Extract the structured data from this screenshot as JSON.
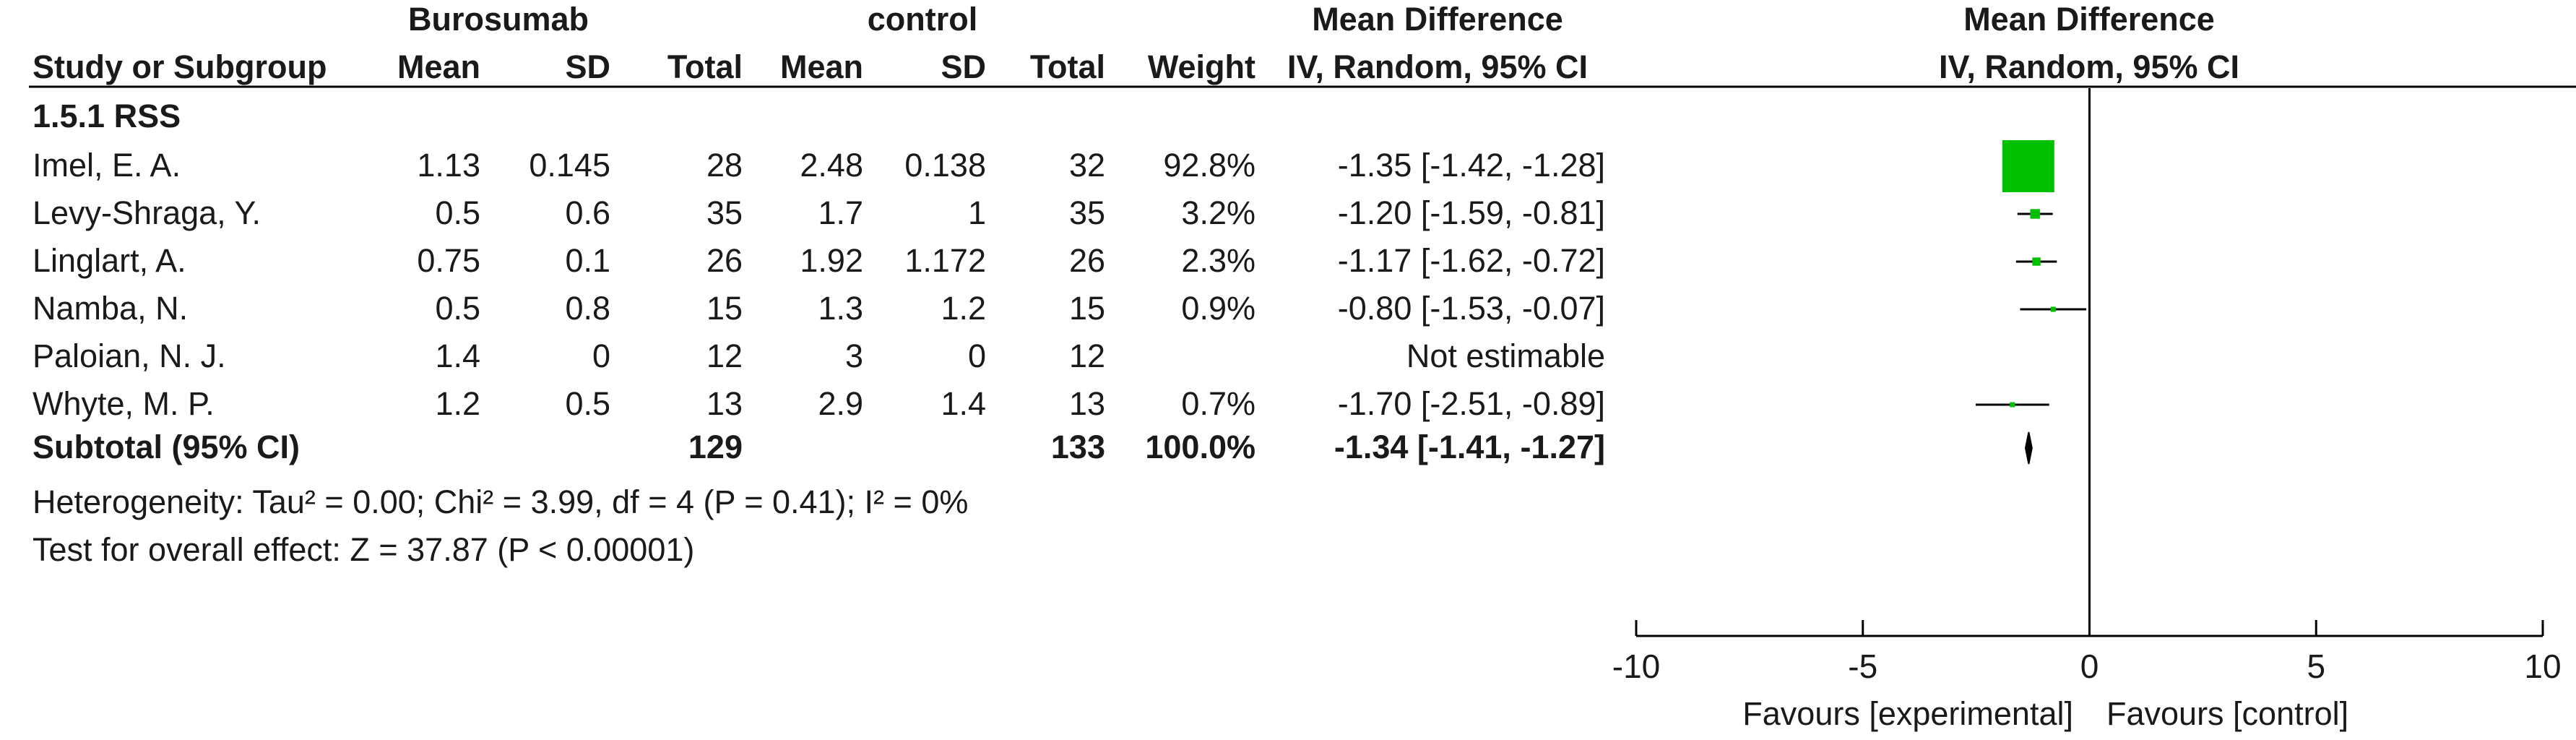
{
  "header": {
    "group_experimental": "Burosumab",
    "group_control": "control",
    "effect_measure": "Mean Difference",
    "effect_method": "IV, Random, 95% CI",
    "plot_measure": "Mean Difference",
    "plot_method": "IV, Random, 95% CI",
    "columns": {
      "study": "Study or Subgroup",
      "exp_mean": "Mean",
      "exp_sd": "SD",
      "exp_total": "Total",
      "ctl_mean": "Mean",
      "ctl_sd": "SD",
      "ctl_total": "Total",
      "weight": "Weight"
    }
  },
  "subgroup_label": "1.5.1 RSS",
  "studies": [
    {
      "name": "Imel, E. A.",
      "exp_mean": "1.13",
      "exp_sd": "0.145",
      "exp_total": "28",
      "ctl_mean": "2.48",
      "ctl_sd": "0.138",
      "ctl_total": "32",
      "weight": "92.8%",
      "ci_text": "-1.35 [-1.42, -1.28]"
    },
    {
      "name": "Levy-Shraga, Y.",
      "exp_mean": "0.5",
      "exp_sd": "0.6",
      "exp_total": "35",
      "ctl_mean": "1.7",
      "ctl_sd": "1",
      "ctl_total": "35",
      "weight": "3.2%",
      "ci_text": "-1.20 [-1.59, -0.81]"
    },
    {
      "name": "Linglart, A.",
      "exp_mean": "0.75",
      "exp_sd": "0.1",
      "exp_total": "26",
      "ctl_mean": "1.92",
      "ctl_sd": "1.172",
      "ctl_total": "26",
      "weight": "2.3%",
      "ci_text": "-1.17 [-1.62, -0.72]"
    },
    {
      "name": "Namba, N.",
      "exp_mean": "0.5",
      "exp_sd": "0.8",
      "exp_total": "15",
      "ctl_mean": "1.3",
      "ctl_sd": "1.2",
      "ctl_total": "15",
      "weight": "0.9%",
      "ci_text": "-0.80 [-1.53, -0.07]"
    },
    {
      "name": "Paloian, N. J.",
      "exp_mean": "1.4",
      "exp_sd": "0",
      "exp_total": "12",
      "ctl_mean": "3",
      "ctl_sd": "0",
      "ctl_total": "12",
      "weight": "",
      "ci_text": "Not estimable"
    },
    {
      "name": "Whyte, M. P.",
      "exp_mean": "1.2",
      "exp_sd": "0.5",
      "exp_total": "13",
      "ctl_mean": "2.9",
      "ctl_sd": "1.4",
      "ctl_total": "13",
      "weight": "0.7%",
      "ci_text": "-1.70 [-2.51, -0.89]"
    }
  ],
  "subtotal": {
    "label": "Subtotal (95% CI)",
    "exp_total": "129",
    "ctl_total": "133",
    "weight": "100.0%",
    "ci_text": "-1.34 [-1.41, -1.27]"
  },
  "heterogeneity": "Heterogeneity: Tau² = 0.00; Chi² = 3.99, df = 4 (P = 0.41); I² = 0%",
  "overall_effect": "Test for overall effect: Z = 37.87 (P < 0.00001)",
  "axis": {
    "ticks": [
      "-10",
      "-5",
      "0",
      "5",
      "10"
    ],
    "favours_left": "Favours [experimental]",
    "favours_right": "Favours [control]"
  },
  "colors": {
    "marker": "#00c000",
    "line": "#000000",
    "text": "#1a1a1a"
  },
  "chart_data": {
    "type": "forest",
    "xlim": [
      -10,
      10
    ],
    "ticks": [
      -10,
      -5,
      0,
      5,
      10
    ],
    "null_line": 0,
    "points": [
      {
        "study": "Imel, E. A.",
        "md": -1.35,
        "lower": -1.42,
        "upper": -1.28,
        "weight": 92.8
      },
      {
        "study": "Levy-Shraga, Y.",
        "md": -1.2,
        "lower": -1.59,
        "upper": -0.81,
        "weight": 3.2
      },
      {
        "study": "Linglart, A.",
        "md": -1.17,
        "lower": -1.62,
        "upper": -0.72,
        "weight": 2.3
      },
      {
        "study": "Namba, N.",
        "md": -0.8,
        "lower": -1.53,
        "upper": -0.07,
        "weight": 0.9
      },
      {
        "study": "Paloian, N. J.",
        "md": null,
        "lower": null,
        "upper": null,
        "weight": null
      },
      {
        "study": "Whyte, M. P.",
        "md": -1.7,
        "lower": -2.51,
        "upper": -0.89,
        "weight": 0.7
      }
    ],
    "pooled": {
      "md": -1.34,
      "lower": -1.41,
      "upper": -1.27
    }
  }
}
